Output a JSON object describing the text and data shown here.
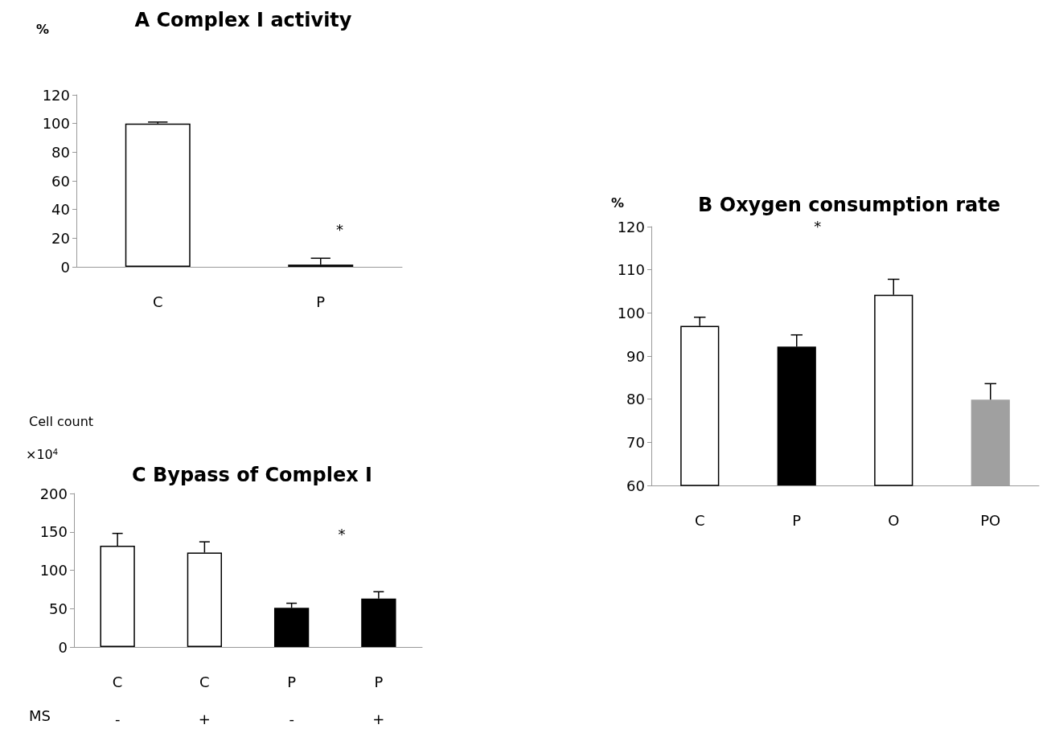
{
  "chart_data": [
    {
      "type": "bar",
      "title": "A Complex I activity",
      "ylabel": "%",
      "categories": [
        "C",
        "P"
      ],
      "values": [
        100,
        1.5
      ],
      "colors": [
        "#ffffff",
        "#000000"
      ],
      "errors": [
        [
          100,
          101
        ],
        [
          1.5,
          6
        ]
      ],
      "ylim": [
        0,
        120
      ],
      "yticks": [
        0,
        20,
        40,
        60,
        80,
        100,
        120
      ],
      "annotations": [
        "*"
      ]
    },
    {
      "type": "bar",
      "title": "B Oxygen consumption rate",
      "ylabel": "%",
      "categories": [
        "C",
        "P",
        "O",
        "PO"
      ],
      "values": [
        97,
        92.2,
        104.2,
        79.9
      ],
      "colors": [
        "#ffffff",
        "#000000",
        "#ffffff",
        "#a0a0a0"
      ],
      "errors": [
        [
          97,
          99
        ],
        [
          92.2,
          94.9
        ],
        [
          104.2,
          107.8
        ],
        [
          79.9,
          83.6
        ]
      ],
      "ylim": [
        60,
        120
      ],
      "yticks": [
        60,
        70,
        80,
        90,
        100,
        110,
        120
      ],
      "annotations": [
        "*"
      ]
    },
    {
      "type": "bar",
      "title": "C Bypass of Complex I",
      "ylabel": "Cell count\n×10$^{4}$",
      "xlabel": "MS",
      "categories": [
        "C\n-",
        "C\n+",
        "P\n-",
        "P\n+"
      ],
      "values": [
        132,
        123,
        51,
        63
      ],
      "colors": [
        "#ffffff",
        "#ffffff",
        "#000000",
        "#000000"
      ],
      "errors": [
        [
          132,
          148
        ],
        [
          123,
          137
        ],
        [
          51,
          57
        ],
        [
          63,
          72
        ]
      ],
      "ylim": [
        0,
        200
      ],
      "yticks": [
        0,
        50,
        100,
        150,
        200
      ],
      "annotations": [
        "*"
      ]
    }
  ]
}
